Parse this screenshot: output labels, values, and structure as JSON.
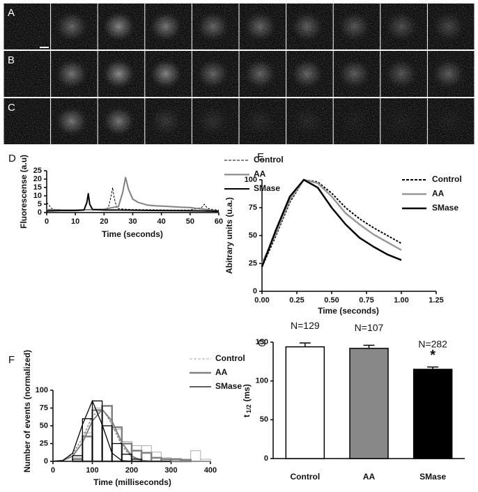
{
  "image_panels": {
    "rows": [
      {
        "label": "A"
      },
      {
        "label": "B"
      },
      {
        "label": "C"
      }
    ]
  },
  "chart_data": [
    {
      "type": "line",
      "label": "D",
      "xlabel": "Time (seconds)",
      "ylabel": "Fluorescense (a.u)",
      "xlim": [
        0,
        60
      ],
      "xticks": [
        0,
        10,
        20,
        30,
        40,
        50,
        60
      ],
      "ylim": [
        0,
        25
      ],
      "yticks": [
        0,
        5,
        10,
        15,
        20,
        25
      ],
      "series": [
        {
          "name": "Control",
          "color": "#000000",
          "dashed": true,
          "line_width": 1,
          "x": [
            0,
            1,
            2,
            4,
            8,
            12,
            16,
            20,
            21.5,
            22.5,
            23,
            23.5,
            24.5,
            27,
            30,
            35,
            40,
            45,
            50,
            54,
            55,
            56,
            58,
            60
          ],
          "values": [
            6,
            4,
            2,
            1.8,
            1.5,
            1.6,
            1.5,
            1.7,
            3,
            10,
            15,
            9,
            2.5,
            2,
            1.8,
            1.7,
            1.6,
            1.5,
            1.5,
            3,
            5,
            2.5,
            1.8,
            1.5
          ]
        },
        {
          "name": "AA",
          "color": "#808080",
          "dashed": false,
          "line_width": 2,
          "x": [
            0,
            5,
            10,
            15,
            20,
            23,
            25,
            26.5,
            27.5,
            28.5,
            30,
            32,
            35,
            38,
            41,
            44,
            47,
            50,
            52,
            55,
            58,
            60
          ],
          "values": [
            1.8,
            1.5,
            1.5,
            1.7,
            2,
            3,
            3.5,
            12,
            21,
            14,
            8,
            6,
            4.5,
            4,
            3.8,
            3.5,
            3.2,
            3,
            2.5,
            2,
            1.2,
            1
          ]
        },
        {
          "name": "SMase",
          "color": "#000000",
          "dashed": false,
          "line_width": 2,
          "x": [
            0,
            5,
            10,
            13,
            14,
            14.5,
            15,
            16,
            20,
            25,
            30,
            40,
            50,
            55,
            60
          ],
          "values": [
            1,
            1.2,
            1.2,
            1.5,
            6,
            11.3,
            5,
            1.8,
            1.5,
            1.5,
            1.4,
            1.2,
            1.1,
            1,
            0.8
          ]
        }
      ]
    },
    {
      "type": "line",
      "label": "E",
      "xlabel": "Time (seconds)",
      "ylabel": "Abitrary units (u.a.)",
      "xlim": [
        0,
        1.25
      ],
      "xticks": [
        {
          "value": 0,
          "label": "0.00"
        },
        {
          "value": 0.25,
          "label": "0.25"
        },
        {
          "value": 0.5,
          "label": "0.50"
        },
        {
          "value": 0.75,
          "label": "0.75"
        },
        {
          "value": 1,
          "label": "1.00"
        },
        {
          "value": 1.25,
          "label": "1.25"
        }
      ],
      "ylim": [
        0,
        100
      ],
      "yticks": [
        0,
        25,
        50,
        75,
        100
      ],
      "x": [
        0,
        0.1,
        0.2,
        0.3,
        0.4,
        0.5,
        0.6,
        0.7,
        0.8,
        0.9,
        1.0
      ],
      "series": [
        {
          "name": "Control",
          "color": "#000000",
          "dashed": true,
          "line_width": 2,
          "values": [
            22,
            50,
            80,
            100,
            98,
            88,
            75,
            65,
            57,
            50,
            43
          ]
        },
        {
          "name": "AA",
          "color": "#999999",
          "dashed": false,
          "line_width": 2.5,
          "values": [
            25,
            52,
            82,
            100,
            97,
            85,
            70,
            60,
            51,
            44,
            37
          ]
        },
        {
          "name": "SMase",
          "color": "#000000",
          "dashed": false,
          "line_width": 2.5,
          "values": [
            22,
            55,
            85,
            100,
            93,
            75,
            60,
            48,
            40,
            33,
            28
          ]
        }
      ]
    },
    {
      "type": "histogram",
      "label": "F",
      "xlabel": "Time (milliseconds)",
      "ylabel": "Number of events (normalized)",
      "xlim": [
        0,
        400
      ],
      "xticks": [
        0,
        100,
        200,
        300,
        400
      ],
      "ylim": [
        0,
        100
      ],
      "yticks": [
        0,
        25,
        50,
        75,
        100
      ],
      "bins": [
        50,
        75,
        100,
        125,
        150,
        175,
        200,
        225,
        250,
        275,
        300,
        325,
        350,
        375,
        400
      ],
      "fit_x": [
        0,
        25,
        50,
        75,
        100,
        125,
        150,
        175,
        200,
        225,
        250,
        275,
        300
      ],
      "series": [
        {
          "name": "Control",
          "color": "#aaaaaa",
          "dashed": true,
          "line_width": 1,
          "values": [
            5,
            40,
            75,
            78,
            45,
            28,
            22,
            22,
            13,
            5,
            4,
            3,
            15,
            3
          ],
          "fit": [
            0.2,
            1.9,
            10.2,
            32.8,
            63.7,
            74.2,
            52,
            21.8,
            5.5,
            0.8,
            0.1,
            0,
            0
          ]
        },
        {
          "name": "AA",
          "color": "#808080",
          "dashed": false,
          "line_width": 2.5,
          "values": [
            3,
            35,
            72,
            78,
            48,
            25,
            15,
            12,
            5,
            3,
            3,
            2,
            0,
            0
          ],
          "fit": [
            0.1,
            1.2,
            7.3,
            26.3,
            56.6,
            73,
            56.6,
            26.3,
            7.3,
            1.2,
            0.1,
            0,
            0
          ]
        },
        {
          "name": "SMase",
          "color": "#000000",
          "dashed": false,
          "line_width": 1.3,
          "values": [
            8,
            60,
            85,
            50,
            25,
            10,
            3,
            0,
            0,
            0,
            0,
            0,
            0,
            0
          ],
          "fit": [
            0,
            1,
            11.5,
            51.6,
            85,
            51.6,
            11.5,
            1,
            0,
            0,
            0,
            0,
            0
          ]
        }
      ]
    },
    {
      "type": "bar",
      "label": "G",
      "ylabel": [
        "t",
        "1/2",
        "(ms)"
      ],
      "ylim": [
        0,
        150
      ],
      "yticks": [
        0,
        50,
        100,
        150
      ],
      "categories": [
        "Control",
        "AA",
        "SMase"
      ],
      "values": [
        144,
        142,
        115
      ],
      "errors": [
        5,
        4,
        3
      ],
      "colors": [
        "#ffffff",
        "#888888",
        "#000000"
      ],
      "annotations": [
        "N=129",
        "N=107",
        "N=282"
      ],
      "significance": [
        null,
        null,
        "*"
      ]
    }
  ]
}
